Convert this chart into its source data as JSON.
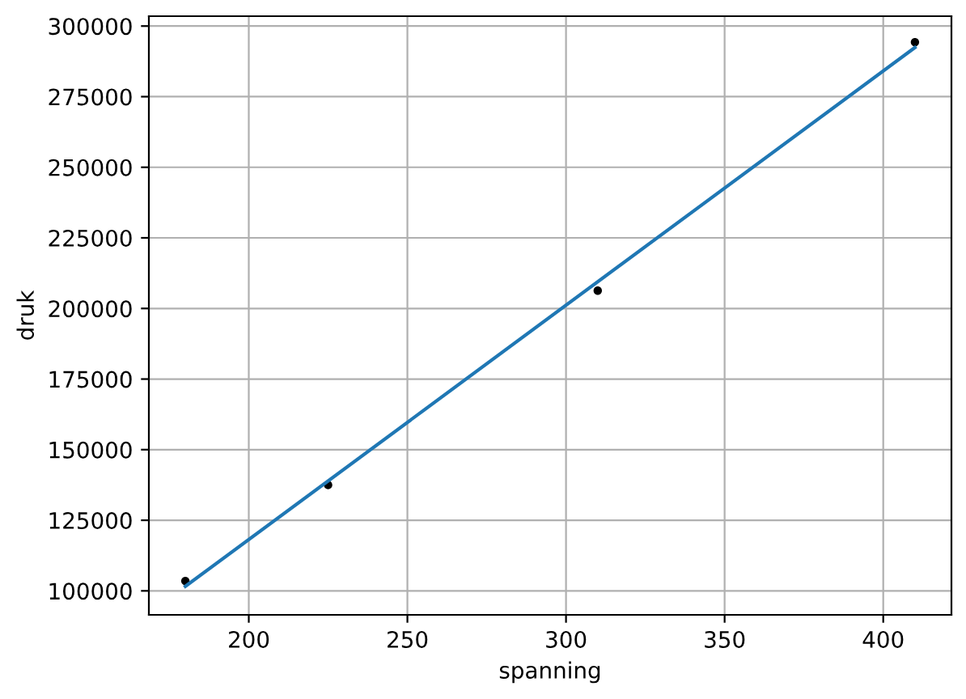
{
  "chart_data": {
    "type": "scatter",
    "xlabel": "spanning",
    "ylabel": "druk",
    "xlim": [
      168.5,
      421.5
    ],
    "ylim": [
      91500,
      303500
    ],
    "xticks": [
      200,
      250,
      300,
      350,
      400
    ],
    "yticks": [
      100000,
      125000,
      150000,
      175000,
      200000,
      225000,
      250000,
      275000,
      300000
    ],
    "grid": true,
    "series": [
      {
        "color": "#000000",
        "marker": "circle",
        "x": [
          180,
          225,
          310,
          410
        ],
        "values": [
          103500,
          137500,
          206300,
          294300
        ]
      },
      {
        "type": "line",
        "color": "#1f77b4",
        "line_style": "solid",
        "x": [
          180,
          410
        ],
        "values": [
          101600,
          292400
        ]
      }
    ]
  }
}
